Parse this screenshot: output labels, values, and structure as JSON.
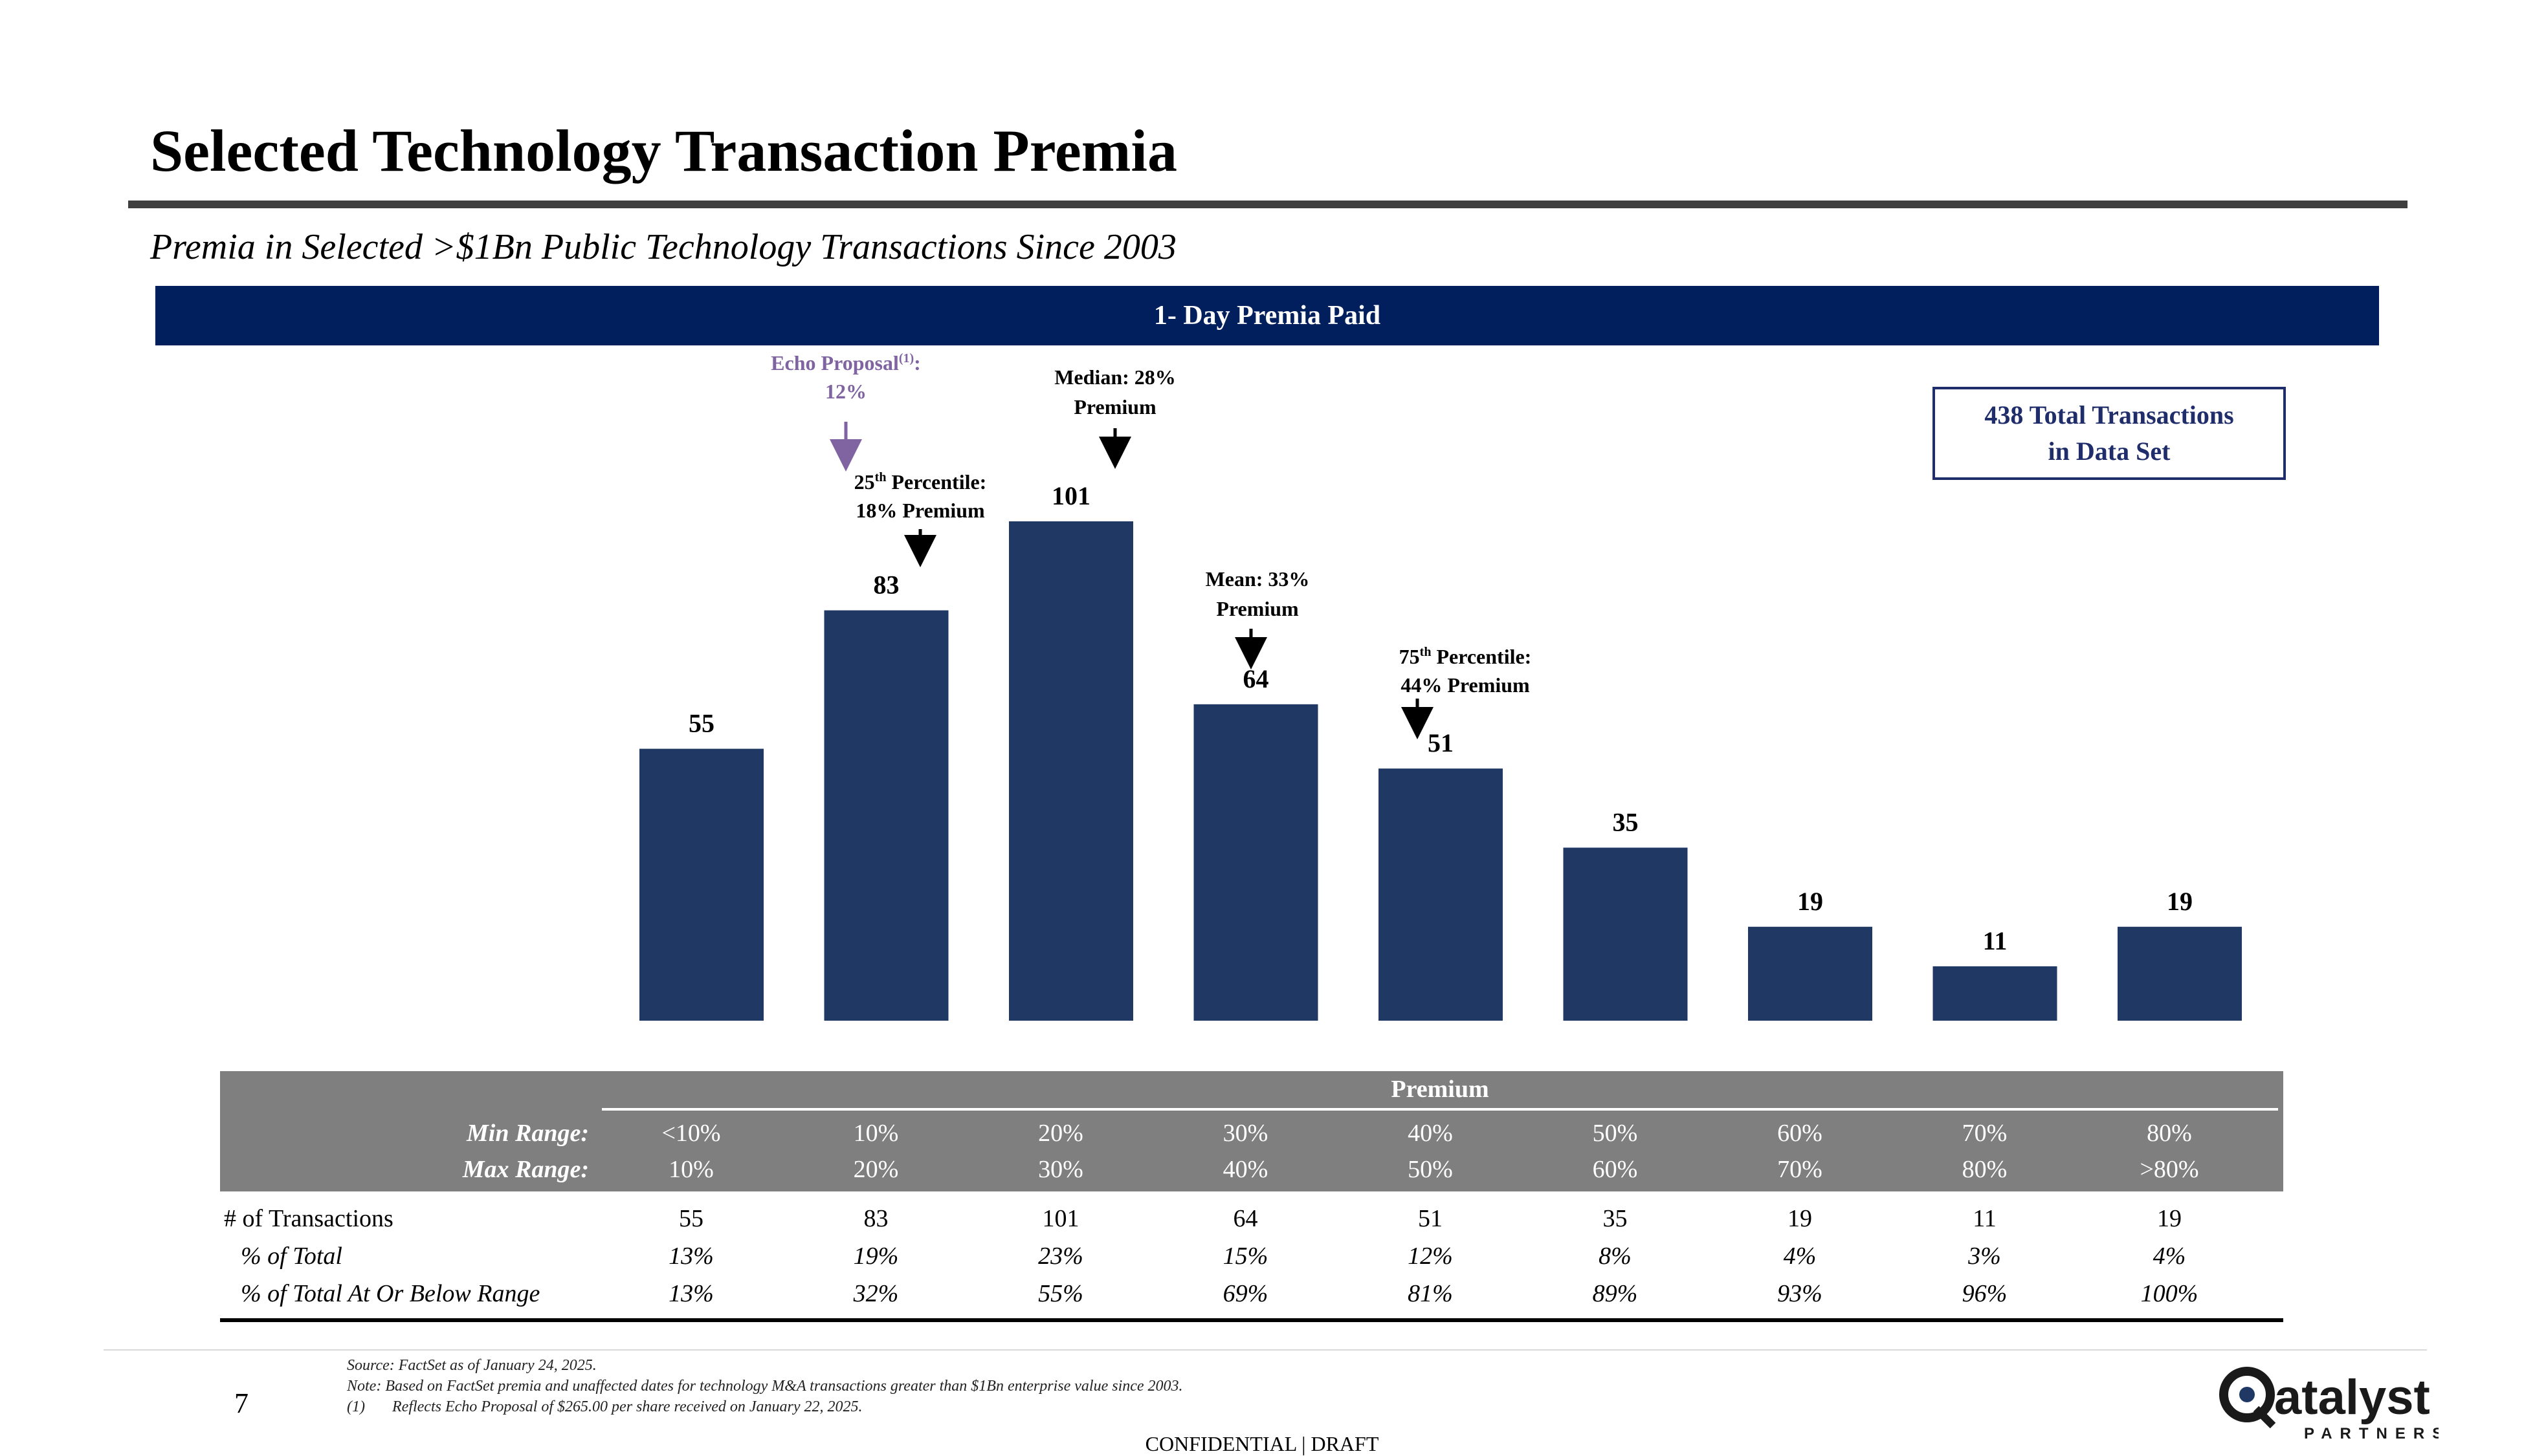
{
  "header": {
    "title": "Selected Technology Transaction Premia",
    "subtitle": "Premia in Selected >$1Bn Public Technology Transactions Since 2003",
    "banner": "1- Day Premia Paid"
  },
  "callout": {
    "line1": "438 Total Transactions",
    "line2": "in Data Set"
  },
  "annotations": {
    "echo_line1": "Echo Proposal",
    "echo_sup": "(1)",
    "echo_colon": ":",
    "echo_line2": "12%",
    "p25_pre": "25",
    "p25_sup": "th",
    "p25_post": " Percentile:",
    "p25_line2": "18% Premium",
    "median_line1": "Median: 28%",
    "median_line2": "Premium",
    "mean_line1": "Mean: 33%",
    "mean_line2": "Premium",
    "p75_pre": "75",
    "p75_sup": "th",
    "p75_post": " Percentile:",
    "p75_line2": "44% Premium",
    "echo_color": "#8064a2"
  },
  "chart_data": {
    "type": "bar",
    "categories": [
      "<10%",
      "10%",
      "20%",
      "30%",
      "40%",
      "50%",
      "60%",
      "70%",
      "80%"
    ],
    "values": [
      55,
      83,
      101,
      64,
      51,
      35,
      19,
      11,
      19
    ],
    "ylim": [
      0,
      101
    ],
    "bar_color": "#203864",
    "grid": false
  },
  "table": {
    "premium_label": "Premium",
    "min_label": "Min Range:",
    "max_label": "Max Range:",
    "min_range": [
      "<10%",
      "10%",
      "20%",
      "30%",
      "40%",
      "50%",
      "60%",
      "70%",
      "80%"
    ],
    "max_range": [
      "10%",
      "20%",
      "30%",
      "40%",
      "50%",
      "60%",
      "70%",
      "80%",
      ">80%"
    ],
    "rows": [
      {
        "label": "# of Transactions",
        "values": [
          "55",
          "83",
          "101",
          "64",
          "51",
          "35",
          "19",
          "11",
          "19"
        ]
      },
      {
        "label": "% of Total",
        "values": [
          "13%",
          "19%",
          "23%",
          "15%",
          "12%",
          "8%",
          "4%",
          "3%",
          "4%"
        ]
      },
      {
        "label": "% of Total At Or Below Range",
        "values": [
          "13%",
          "32%",
          "55%",
          "69%",
          "81%",
          "89%",
          "93%",
          "96%",
          "100%"
        ]
      }
    ]
  },
  "footer": {
    "page_number": "7",
    "source": "Source: FactSet as of January 24, 2025.",
    "note": "Note: Based on FactSet premia and unaffected dates for technology M&A transactions greater than $1Bn enterprise value since 2003.",
    "footnote_marker": "(1)",
    "footnote": "Reflects Echo Proposal of $265.00 per share received on January 22, 2025.",
    "confidential": "CONFIDENTIAL | DRAFT",
    "logo_text": "atalyst",
    "logo_sub": "PARTNERS"
  }
}
